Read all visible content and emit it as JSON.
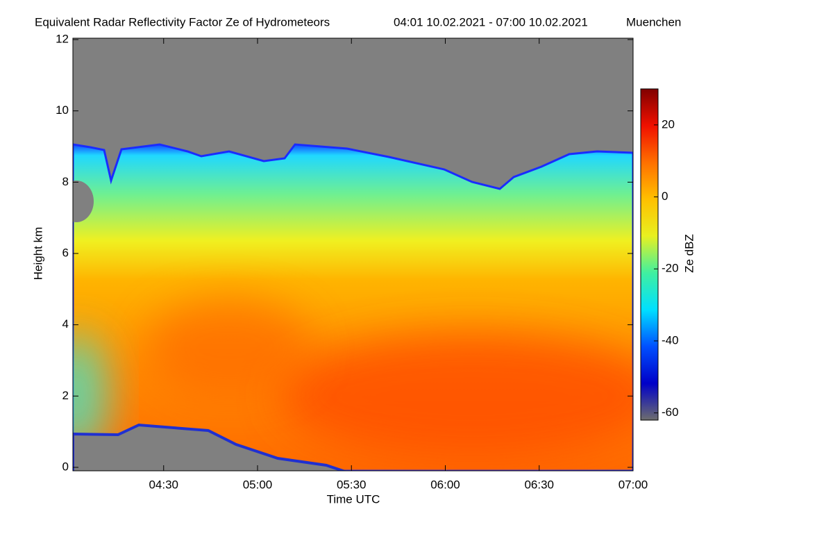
{
  "chart_data": {
    "type": "heatmap",
    "title": "Equivalent Radar Reflectivity Factor Ze of Hydrometeors",
    "period": "04:01 10.02.2021 - 07:00 10.02.2021",
    "location": "Muenchen",
    "x_label": "Time UTC",
    "y_label": "Height km",
    "xlim": [
      241,
      420
    ],
    "xticks": [
      {
        "value": 270,
        "label": "04:30"
      },
      {
        "value": 300,
        "label": "05:00"
      },
      {
        "value": 330,
        "label": "05:30"
      },
      {
        "value": 360,
        "label": "06:00"
      },
      {
        "value": 390,
        "label": "06:30"
      },
      {
        "value": 420,
        "label": "07:00"
      }
    ],
    "ylim": [
      0,
      12
    ],
    "yticks": [
      0,
      2,
      4,
      6,
      8,
      10,
      12
    ],
    "colorbar": {
      "label": "Ze dBZ",
      "lim": [
        -62,
        30
      ],
      "ticks": [
        -60,
        -40,
        -20,
        0,
        20
      ],
      "colormap": [
        "#6e6e6e",
        "#0000c8",
        "#0050ff",
        "#00e0ff",
        "#40f0a0",
        "#e8f020",
        "#ffc000",
        "#ff7000",
        "#f01000",
        "#800000"
      ]
    }
  }
}
